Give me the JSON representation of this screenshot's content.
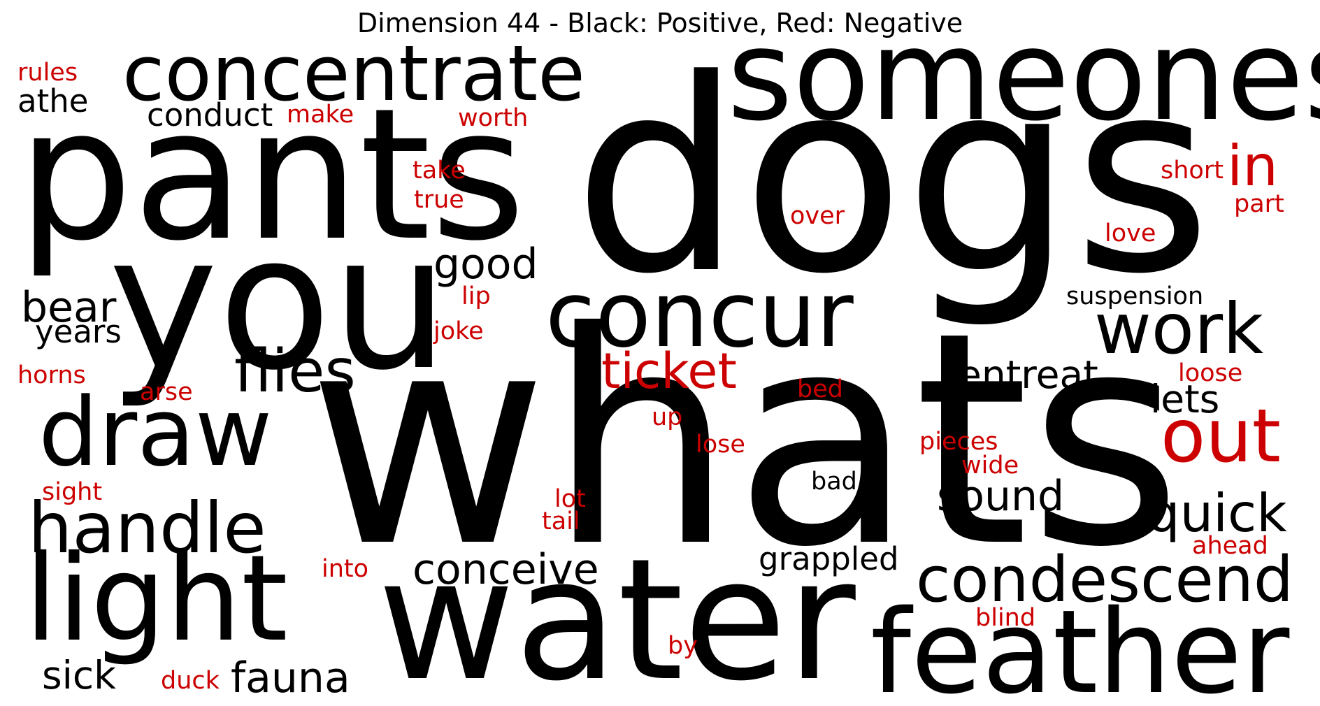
{
  "title": "Dimension 44 - Black: Positive, Red: Negative",
  "colors": {
    "positive": "#000000",
    "negative": "#cc0000"
  },
  "words": [
    {
      "text": "whats",
      "sign": "positive"
    },
    {
      "text": "dogs",
      "sign": "positive"
    },
    {
      "text": "pants",
      "sign": "positive"
    },
    {
      "text": "you",
      "sign": "positive"
    },
    {
      "text": "water",
      "sign": "positive"
    },
    {
      "text": "someones",
      "sign": "positive"
    },
    {
      "text": "feather",
      "sign": "positive"
    },
    {
      "text": "light",
      "sign": "positive"
    },
    {
      "text": "concentrate",
      "sign": "positive"
    },
    {
      "text": "concur",
      "sign": "positive"
    },
    {
      "text": "draw",
      "sign": "positive"
    },
    {
      "text": "handle",
      "sign": "positive"
    },
    {
      "text": "condescend",
      "sign": "positive"
    },
    {
      "text": "work",
      "sign": "positive"
    },
    {
      "text": "flies",
      "sign": "positive"
    },
    {
      "text": "out",
      "sign": "negative"
    },
    {
      "text": "quick",
      "sign": "positive"
    },
    {
      "text": "in",
      "sign": "negative"
    },
    {
      "text": "ticket",
      "sign": "negative"
    },
    {
      "text": "conceive",
      "sign": "positive"
    },
    {
      "text": "entreat",
      "sign": "positive"
    },
    {
      "text": "fauna",
      "sign": "positive"
    },
    {
      "text": "good",
      "sign": "positive"
    },
    {
      "text": "sick",
      "sign": "positive"
    },
    {
      "text": "sound",
      "sign": "positive"
    },
    {
      "text": "lets",
      "sign": "positive"
    },
    {
      "text": "bear",
      "sign": "positive"
    },
    {
      "text": "years",
      "sign": "positive"
    },
    {
      "text": "grappled",
      "sign": "positive"
    },
    {
      "text": "conduct",
      "sign": "positive"
    },
    {
      "text": "athe",
      "sign": "positive"
    },
    {
      "text": "suspension",
      "sign": "positive"
    },
    {
      "text": "rules",
      "sign": "negative"
    },
    {
      "text": "make",
      "sign": "negative"
    },
    {
      "text": "worth",
      "sign": "negative"
    },
    {
      "text": "take",
      "sign": "negative"
    },
    {
      "text": "true",
      "sign": "negative"
    },
    {
      "text": "short",
      "sign": "negative"
    },
    {
      "text": "part",
      "sign": "negative"
    },
    {
      "text": "over",
      "sign": "negative"
    },
    {
      "text": "love",
      "sign": "negative"
    },
    {
      "text": "lip",
      "sign": "negative"
    },
    {
      "text": "joke",
      "sign": "negative"
    },
    {
      "text": "horns",
      "sign": "negative"
    },
    {
      "text": "arse",
      "sign": "negative"
    },
    {
      "text": "bed",
      "sign": "negative"
    },
    {
      "text": "loose",
      "sign": "negative"
    },
    {
      "text": "up",
      "sign": "negative"
    },
    {
      "text": "lose",
      "sign": "negative"
    },
    {
      "text": "pieces",
      "sign": "negative"
    },
    {
      "text": "wide",
      "sign": "negative"
    },
    {
      "text": "bad",
      "sign": "positive"
    },
    {
      "text": "sight",
      "sign": "negative"
    },
    {
      "text": "lot",
      "sign": "negative"
    },
    {
      "text": "tail",
      "sign": "negative"
    },
    {
      "text": "ahead",
      "sign": "negative"
    },
    {
      "text": "into",
      "sign": "negative"
    },
    {
      "text": "blind",
      "sign": "negative"
    },
    {
      "text": "by",
      "sign": "negative"
    },
    {
      "text": "duck",
      "sign": "negative"
    }
  ]
}
